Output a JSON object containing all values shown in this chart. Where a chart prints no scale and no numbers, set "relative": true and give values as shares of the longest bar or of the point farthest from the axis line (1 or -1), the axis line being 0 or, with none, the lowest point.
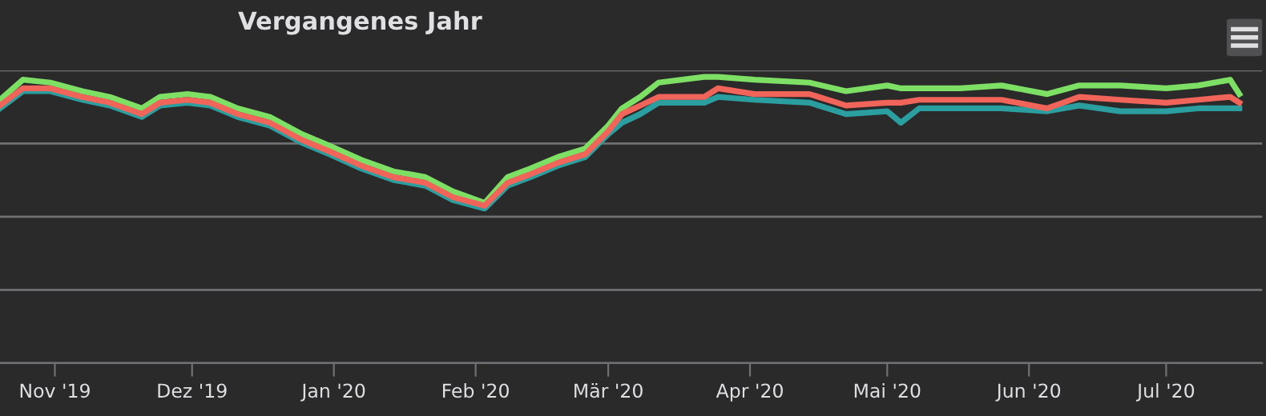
{
  "chart_data": {
    "type": "line",
    "title": "Vergangenes Jahr",
    "relative": true,
    "grid": "y",
    "marker": "none",
    "line_style": "solid",
    "x": [
      "2019-10-20",
      "2019-10-25",
      "2019-10-31",
      "2019-11-07",
      "2019-11-13",
      "2019-11-20",
      "2019-11-24",
      "2019-11-30",
      "2019-12-05",
      "2019-12-11",
      "2019-12-18",
      "2019-12-25",
      "2019-12-31",
      "2020-01-07",
      "2020-01-14",
      "2020-01-21",
      "2020-01-27",
      "2020-02-03",
      "2020-02-08",
      "2020-02-13",
      "2020-02-19",
      "2020-02-25",
      "2020-03-01",
      "2020-03-04",
      "2020-03-08",
      "2020-03-12",
      "2020-03-22",
      "2020-03-25",
      "2020-04-02",
      "2020-04-14",
      "2020-04-22",
      "2020-05-01",
      "2020-05-04",
      "2020-05-08",
      "2020-05-17",
      "2020-05-26",
      "2020-06-05",
      "2020-06-12",
      "2020-06-21",
      "2020-07-01",
      "2020-07-08",
      "2020-07-15",
      "2020-07-17"
    ],
    "xlim": [
      "2019-10-20",
      "2020-07-22"
    ],
    "xticks": [
      {
        "value": "2019-11-01",
        "label": "Nov '19"
      },
      {
        "value": "2019-12-01",
        "label": "Dez '19"
      },
      {
        "value": "2020-01-01",
        "label": "Jan '20"
      },
      {
        "value": "2020-02-01",
        "label": "Feb '20"
      },
      {
        "value": "2020-03-01",
        "label": "Mär '20"
      },
      {
        "value": "2020-04-01",
        "label": "Apr '20"
      },
      {
        "value": "2020-05-01",
        "label": "Mai '20"
      },
      {
        "value": "2020-06-01",
        "label": "Jun '20"
      },
      {
        "value": "2020-07-01",
        "label": "Jul '20"
      }
    ],
    "series": [
      {
        "color": "#2b9ea0",
        "values": [
          0.89,
          0.95,
          0.95,
          0.92,
          0.9,
          0.86,
          0.9,
          0.91,
          0.9,
          0.86,
          0.83,
          0.77,
          0.73,
          0.68,
          0.64,
          0.62,
          0.57,
          0.54,
          0.62,
          0.65,
          0.69,
          0.72,
          0.8,
          0.84,
          0.87,
          0.91,
          0.91,
          0.93,
          0.92,
          0.91,
          0.87,
          0.88,
          0.84,
          0.89,
          0.89,
          0.89,
          0.88,
          0.9,
          0.88,
          0.88,
          0.89,
          0.89,
          0.89
        ]
      },
      {
        "color": "#7ddf64",
        "values": [
          0.92,
          0.99,
          0.98,
          0.95,
          0.93,
          0.89,
          0.93,
          0.94,
          0.93,
          0.89,
          0.86,
          0.8,
          0.76,
          0.71,
          0.67,
          0.65,
          0.6,
          0.56,
          0.65,
          0.68,
          0.72,
          0.75,
          0.83,
          0.89,
          0.93,
          0.98,
          1.0,
          1.0,
          0.99,
          0.98,
          0.95,
          0.97,
          0.96,
          0.96,
          0.96,
          0.97,
          0.94,
          0.97,
          0.97,
          0.96,
          0.97,
          0.99,
          0.94
        ]
      },
      {
        "color": "#f0645a",
        "values": [
          0.9,
          0.96,
          0.96,
          0.93,
          0.91,
          0.87,
          0.91,
          0.92,
          0.91,
          0.87,
          0.84,
          0.78,
          0.74,
          0.69,
          0.65,
          0.63,
          0.58,
          0.55,
          0.63,
          0.66,
          0.7,
          0.73,
          0.81,
          0.87,
          0.9,
          0.93,
          0.93,
          0.96,
          0.94,
          0.94,
          0.9,
          0.91,
          0.91,
          0.92,
          0.92,
          0.92,
          0.89,
          0.93,
          0.92,
          0.91,
          0.92,
          0.93,
          0.91
        ]
      }
    ]
  }
}
